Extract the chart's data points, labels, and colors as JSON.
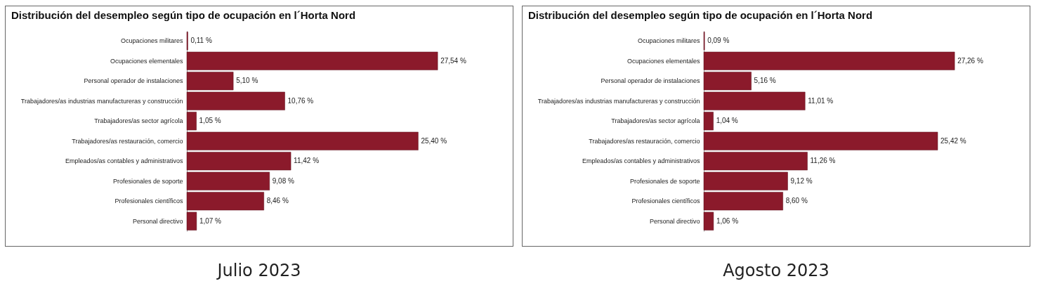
{
  "chart_data": [
    {
      "type": "bar",
      "orientation": "horizontal",
      "title": "Distribución del desempleo según tipo de ocupación en l´Horta Nord",
      "categories": [
        "Ocupaciones militares",
        "Ocupaciones elementales",
        "Personal operador de instalaciones",
        "Trabajadores/as industrias manufactureras y construcción",
        "Trabajadores/as sector agrícola",
        "Trabajadores/as restauración, comercio",
        "Empleados/as contables y administrativos",
        "Profesionales de soporte",
        "Profesionales científicos",
        "Personal directivo"
      ],
      "values": [
        0.11,
        27.54,
        5.1,
        10.76,
        1.05,
        25.4,
        11.42,
        9.08,
        8.46,
        1.07
      ],
      "value_labels": [
        "0,11 %",
        "27,54 %",
        "5,10 %",
        "10,76 %",
        "1,05 %",
        "25,40 %",
        "11,42 %",
        "9,08 %",
        "8,46 %",
        "1,07 %"
      ],
      "color": "#8b1a2b",
      "annotations": [
        "Julio 2023"
      ]
    },
    {
      "type": "bar",
      "orientation": "horizontal",
      "title": "Distribución del desempleo según tipo de ocupación en l´Horta Nord",
      "categories": [
        "Ocupaciones militares",
        "Ocupaciones elementales",
        "Personal operador de instalaciones",
        "Trabajadores/as industrias manufactureras y construcción",
        "Trabajadores/as sector agrícola",
        "Trabajadores/as restauración, comercio",
        "Empleados/as contables y administrativos",
        "Profesionales de soporte",
        "Profesionales científicos",
        "Personal directivo"
      ],
      "values": [
        0.09,
        27.26,
        5.16,
        11.01,
        1.04,
        25.42,
        11.26,
        9.12,
        8.6,
        1.06
      ],
      "value_labels": [
        "0,09 %",
        "27,26 %",
        "5,16 %",
        "11,01 %",
        "1,04 %",
        "25,42 %",
        "11,26 %",
        "9,12 %",
        "8,60 %",
        "1,06 %"
      ],
      "color": "#8b1a2b",
      "annotations": [
        "Agosto 2023"
      ]
    }
  ]
}
